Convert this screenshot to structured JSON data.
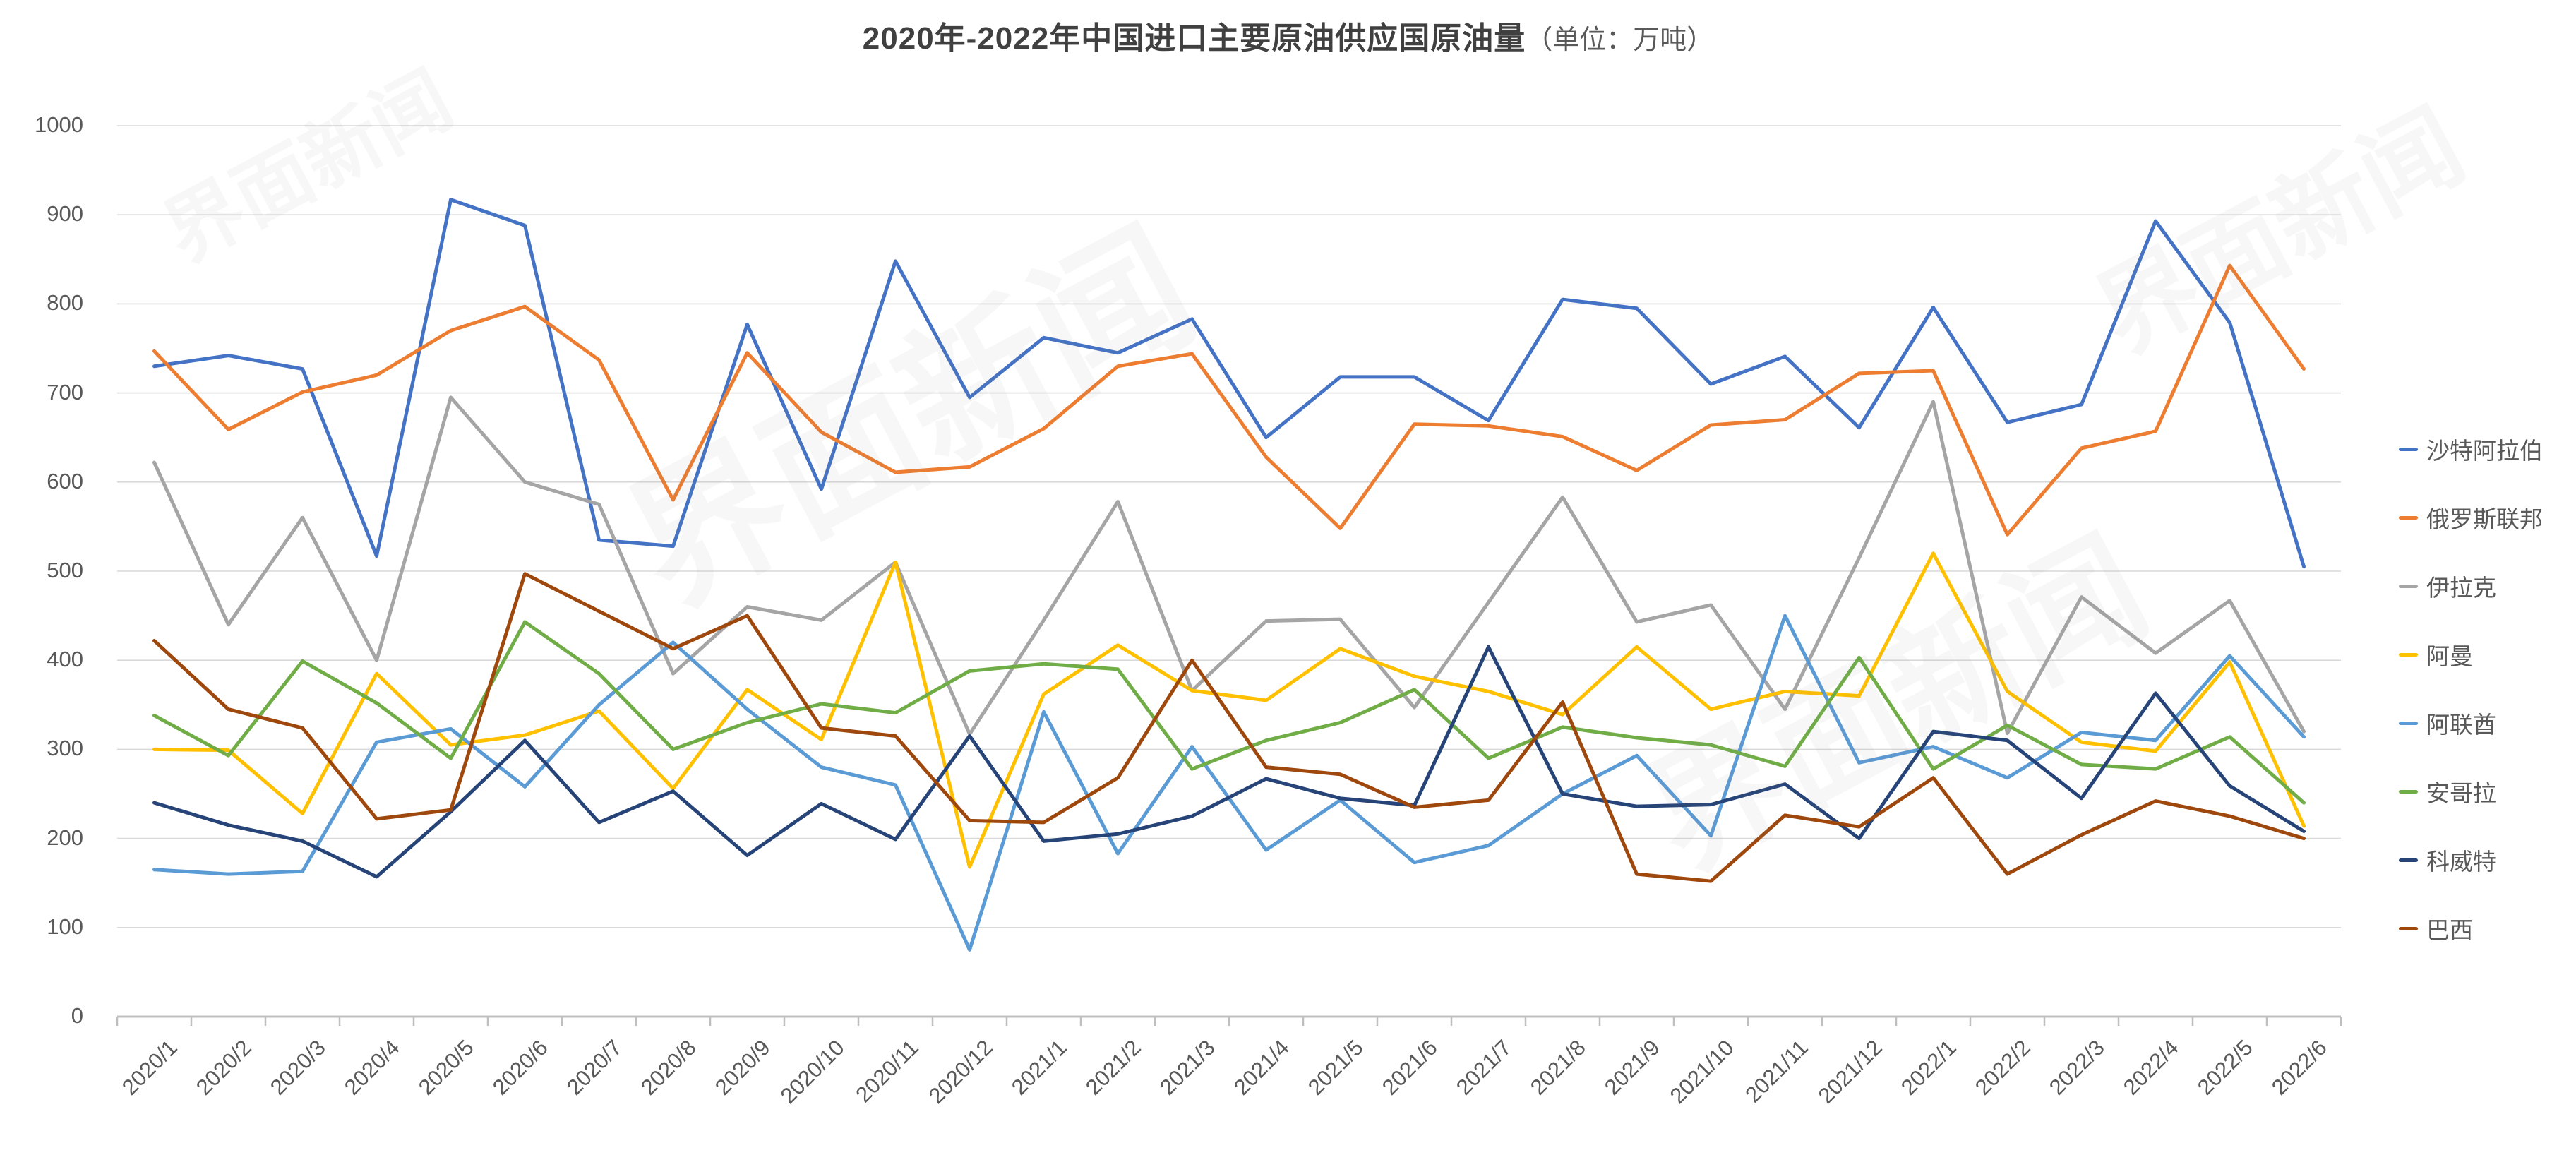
{
  "title": {
    "main": "2020年-2022年中国进口主要原油供应国原油量",
    "unit_suffix": "（单位：万吨）"
  },
  "watermark": {
    "text": "界面新闻"
  },
  "chart_data": {
    "type": "line",
    "title": "2020年-2022年中国进口主要原油供应国原油量",
    "unit": "万吨",
    "xlabel": "",
    "ylabel": "",
    "ylim": [
      0,
      1000
    ],
    "yticks": [
      0,
      100,
      200,
      300,
      400,
      500,
      600,
      700,
      800,
      900,
      1000
    ],
    "grid": "horizontal",
    "legend_position": "right",
    "x": [
      "2020/1",
      "2020/2",
      "2020/3",
      "2020/4",
      "2020/5",
      "2020/6",
      "2020/7",
      "2020/8",
      "2020/9",
      "2020/10",
      "2020/11",
      "2020/12",
      "2021/1",
      "2021/2",
      "2021/3",
      "2021/4",
      "2021/5",
      "2021/6",
      "2021/7",
      "2021/8",
      "2021/9",
      "2021/10",
      "2021/11",
      "2021/12",
      "2022/1",
      "2022/2",
      "2022/3",
      "2022/4",
      "2022/5",
      "2022/6"
    ],
    "series": [
      {
        "name": "沙特阿拉伯",
        "color": "#4472C4",
        "values": [
          730,
          742,
          727,
          517,
          917,
          888,
          535,
          528,
          777,
          592,
          848,
          695,
          762,
          745,
          783,
          650,
          718,
          718,
          669,
          805,
          795,
          710,
          741,
          661,
          796,
          667,
          687,
          893,
          779,
          505
        ]
      },
      {
        "name": "俄罗斯联邦",
        "color": "#ED7D31",
        "values": [
          747,
          659,
          701,
          720,
          770,
          797,
          737,
          580,
          745,
          656,
          611,
          617,
          660,
          730,
          744,
          628,
          548,
          665,
          663,
          651,
          613,
          664,
          670,
          722,
          725,
          541,
          638,
          657,
          843,
          727
        ]
      },
      {
        "name": "伊拉克",
        "color": "#A5A5A5",
        "values": [
          622,
          440,
          560,
          400,
          695,
          600,
          575,
          385,
          460,
          445,
          510,
          317,
          445,
          578,
          366,
          444,
          446,
          347,
          465,
          583,
          443,
          462,
          345,
          515,
          690,
          318,
          471,
          408,
          467,
          320
        ]
      },
      {
        "name": "阿曼",
        "color": "#FFC000",
        "values": [
          300,
          299,
          228,
          385,
          305,
          316,
          343,
          256,
          367,
          311,
          510,
          168,
          362,
          417,
          366,
          355,
          413,
          382,
          365,
          339,
          415,
          345,
          365,
          360,
          520,
          365,
          308,
          298,
          398,
          214
        ]
      },
      {
        "name": "阿联酋",
        "color": "#5B9BD5",
        "values": [
          165,
          160,
          163,
          308,
          323,
          258,
          350,
          420,
          345,
          280,
          260,
          75,
          342,
          183,
          303,
          187,
          243,
          173,
          192,
          250,
          293,
          203,
          450,
          285,
          303,
          268,
          319,
          310,
          405,
          314
        ]
      },
      {
        "name": "安哥拉",
        "color": "#70AD47",
        "values": [
          338,
          293,
          399,
          352,
          290,
          443,
          385,
          300,
          330,
          351,
          341,
          388,
          396,
          390,
          278,
          310,
          330,
          367,
          290,
          325,
          313,
          305,
          281,
          403,
          278,
          327,
          283,
          278,
          314,
          240
        ]
      },
      {
        "name": "科威特",
        "color": "#264478",
        "values": [
          240,
          215,
          197,
          157,
          230,
          310,
          218,
          253,
          181,
          239,
          199,
          315,
          197,
          205,
          225,
          267,
          245,
          237,
          415,
          250,
          236,
          238,
          261,
          200,
          320,
          310,
          245,
          363,
          259,
          208
        ]
      },
      {
        "name": "巴西",
        "color": "#9E480E",
        "values": [
          422,
          345,
          324,
          222,
          232,
          497,
          455,
          413,
          450,
          324,
          315,
          220,
          218,
          268,
          400,
          280,
          272,
          235,
          243,
          353,
          160,
          152,
          226,
          213,
          268,
          160,
          204,
          242,
          225,
          200
        ]
      }
    ]
  }
}
